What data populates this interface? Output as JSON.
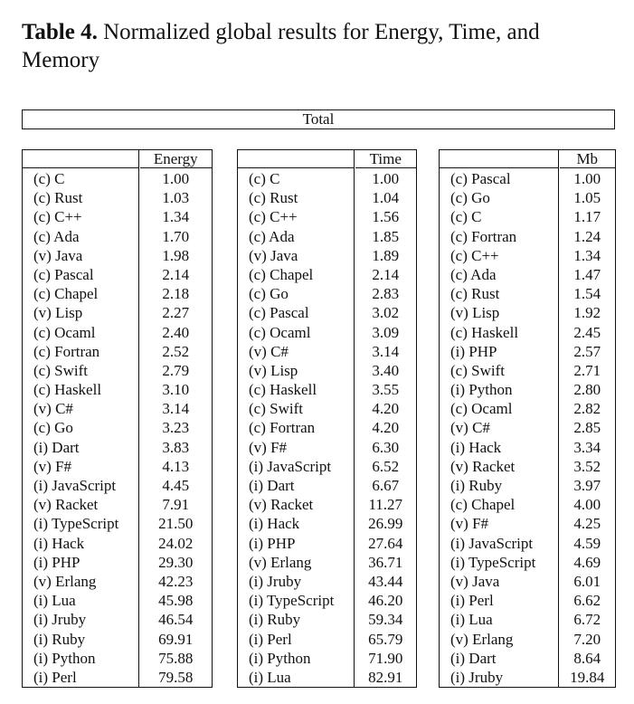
{
  "caption": {
    "label": "Table 4.",
    "text": " Normalized global results for Energy, Time, and Memory"
  },
  "total_label": "Total",
  "tables": [
    {
      "header": "Energy",
      "rows": [
        [
          "(c) C",
          "1.00"
        ],
        [
          "(c) Rust",
          "1.03"
        ],
        [
          "(c) C++",
          "1.34"
        ],
        [
          "(c) Ada",
          "1.70"
        ],
        [
          "(v) Java",
          "1.98"
        ],
        [
          "(c) Pascal",
          "2.14"
        ],
        [
          "(c) Chapel",
          "2.18"
        ],
        [
          "(v) Lisp",
          "2.27"
        ],
        [
          "(c) Ocaml",
          "2.40"
        ],
        [
          "(c) Fortran",
          "2.52"
        ],
        [
          "(c) Swift",
          "2.79"
        ],
        [
          "(c) Haskell",
          "3.10"
        ],
        [
          "(v) C#",
          "3.14"
        ],
        [
          "(c) Go",
          "3.23"
        ],
        [
          "(i) Dart",
          "3.83"
        ],
        [
          "(v) F#",
          "4.13"
        ],
        [
          "(i) JavaScript",
          "4.45"
        ],
        [
          "(v) Racket",
          "7.91"
        ],
        [
          "(i) TypeScript",
          "21.50"
        ],
        [
          "(i) Hack",
          "24.02"
        ],
        [
          "(i) PHP",
          "29.30"
        ],
        [
          "(v) Erlang",
          "42.23"
        ],
        [
          "(i) Lua",
          "45.98"
        ],
        [
          "(i) Jruby",
          "46.54"
        ],
        [
          "(i) Ruby",
          "69.91"
        ],
        [
          "(i) Python",
          "75.88"
        ],
        [
          "(i) Perl",
          "79.58"
        ]
      ]
    },
    {
      "header": "Time",
      "rows": [
        [
          "(c) C",
          "1.00"
        ],
        [
          "(c) Rust",
          "1.04"
        ],
        [
          "(c) C++",
          "1.56"
        ],
        [
          "(c) Ada",
          "1.85"
        ],
        [
          "(v) Java",
          "1.89"
        ],
        [
          "(c) Chapel",
          "2.14"
        ],
        [
          "(c) Go",
          "2.83"
        ],
        [
          "(c) Pascal",
          "3.02"
        ],
        [
          "(c) Ocaml",
          "3.09"
        ],
        [
          "(v) C#",
          "3.14"
        ],
        [
          "(v) Lisp",
          "3.40"
        ],
        [
          "(c) Haskell",
          "3.55"
        ],
        [
          "(c) Swift",
          "4.20"
        ],
        [
          "(c) Fortran",
          "4.20"
        ],
        [
          "(v) F#",
          "6.30"
        ],
        [
          "(i) JavaScript",
          "6.52"
        ],
        [
          "(i) Dart",
          "6.67"
        ],
        [
          "(v) Racket",
          "11.27"
        ],
        [
          "(i) Hack",
          "26.99"
        ],
        [
          "(i) PHP",
          "27.64"
        ],
        [
          "(v) Erlang",
          "36.71"
        ],
        [
          "(i) Jruby",
          "43.44"
        ],
        [
          "(i) TypeScript",
          "46.20"
        ],
        [
          "(i) Ruby",
          "59.34"
        ],
        [
          "(i) Perl",
          "65.79"
        ],
        [
          "(i) Python",
          "71.90"
        ],
        [
          "(i) Lua",
          "82.91"
        ]
      ]
    },
    {
      "header": "Mb",
      "rows": [
        [
          "(c) Pascal",
          "1.00"
        ],
        [
          "(c) Go",
          "1.05"
        ],
        [
          "(c) C",
          "1.17"
        ],
        [
          "(c) Fortran",
          "1.24"
        ],
        [
          "(c) C++",
          "1.34"
        ],
        [
          "(c) Ada",
          "1.47"
        ],
        [
          "(c) Rust",
          "1.54"
        ],
        [
          "(v) Lisp",
          "1.92"
        ],
        [
          "(c) Haskell",
          "2.45"
        ],
        [
          "(i) PHP",
          "2.57"
        ],
        [
          "(c) Swift",
          "2.71"
        ],
        [
          "(i) Python",
          "2.80"
        ],
        [
          "(c) Ocaml",
          "2.82"
        ],
        [
          "(v) C#",
          "2.85"
        ],
        [
          "(i) Hack",
          "3.34"
        ],
        [
          "(v) Racket",
          "3.52"
        ],
        [
          "(i) Ruby",
          "3.97"
        ],
        [
          "(c) Chapel",
          "4.00"
        ],
        [
          "(v) F#",
          "4.25"
        ],
        [
          "(i) JavaScript",
          "4.59"
        ],
        [
          "(i) TypeScript",
          "4.69"
        ],
        [
          "(v) Java",
          "6.01"
        ],
        [
          "(i) Perl",
          "6.62"
        ],
        [
          "(i) Lua",
          "6.72"
        ],
        [
          "(v) Erlang",
          "7.20"
        ],
        [
          "(i) Dart",
          "8.64"
        ],
        [
          "(i) Jruby",
          "19.84"
        ]
      ]
    }
  ]
}
